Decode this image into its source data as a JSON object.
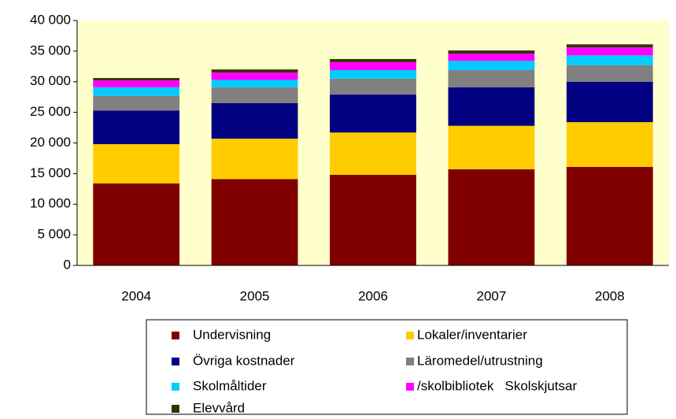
{
  "chart_data": {
    "type": "stacked_bar",
    "categories": [
      "2004",
      "2005",
      "2006",
      "2007",
      "2008"
    ],
    "series": [
      {
        "name": "Undervisning",
        "color": "#800000",
        "values": [
          13400,
          14100,
          14800,
          15700,
          16100
        ]
      },
      {
        "name": "Lokaler/inventarier",
        "color": "#ffcc00",
        "values": [
          6400,
          6600,
          6900,
          7100,
          7300
        ]
      },
      {
        "name": "Övriga kostnader",
        "color": "#000080",
        "values": [
          5500,
          5800,
          6200,
          6300,
          6600
        ]
      },
      {
        "name": "Läromedel/utrustning",
        "color": "#808080",
        "values": [
          2400,
          2600,
          2600,
          2800,
          2700
        ]
      },
      {
        "name": "Skolmåltider",
        "color": "#00ccff",
        "values": [
          1400,
          1200,
          1400,
          1500,
          1600
        ]
      },
      {
        "name": "/skolbibliotek   Skolskjutsar",
        "color": "#ff00ff",
        "values": [
          1100,
          1200,
          1300,
          1200,
          1300
        ]
      },
      {
        "name": "Elevvård",
        "color": "#333300",
        "values": [
          400,
          500,
          500,
          500,
          500
        ]
      }
    ],
    "ylim": [
      0,
      40000
    ],
    "yticks": [
      0,
      {
        "value": 5000,
        "label": "5 000"
      },
      {
        "value": 10000,
        "label": "10 000"
      },
      {
        "value": 15000,
        "label": "15 000"
      },
      {
        "value": 20000,
        "label": "20 000"
      },
      {
        "value": 25000,
        "label": "25 000"
      },
      {
        "value": 30000,
        "label": "30 000"
      },
      {
        "value": 35000,
        "label": "35 000"
      },
      {
        "value": 40000,
        "label": "40 000"
      }
    ]
  }
}
